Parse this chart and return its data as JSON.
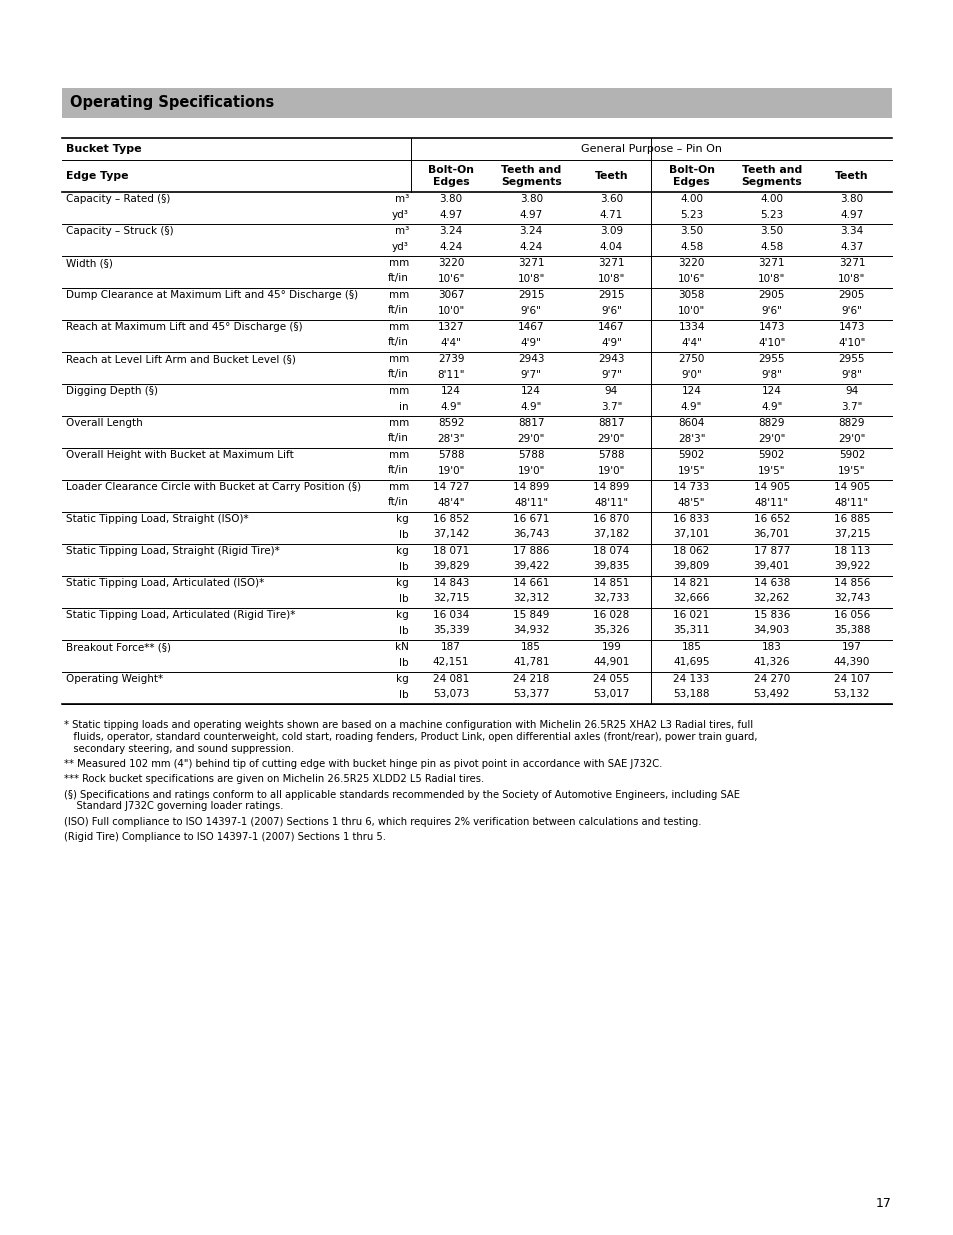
{
  "title": "Operating Specifications",
  "title_bg": "#b3b3b3",
  "page_bg": "#ffffff",
  "rows": [
    {
      "label": "Capacity – Rated (§)",
      "sub_rows": [
        {
          "unit": "m³",
          "vals": [
            "3.80",
            "3.80",
            "3.60",
            "4.00",
            "4.00",
            "3.80"
          ]
        },
        {
          "unit": "yd³",
          "vals": [
            "4.97",
            "4.97",
            "4.71",
            "5.23",
            "5.23",
            "4.97"
          ]
        }
      ]
    },
    {
      "label": "Capacity – Struck (§)",
      "sub_rows": [
        {
          "unit": "m³",
          "vals": [
            "3.24",
            "3.24",
            "3.09",
            "3.50",
            "3.50",
            "3.34"
          ]
        },
        {
          "unit": "yd³",
          "vals": [
            "4.24",
            "4.24",
            "4.04",
            "4.58",
            "4.58",
            "4.37"
          ]
        }
      ]
    },
    {
      "label": "Width (§)",
      "sub_rows": [
        {
          "unit": "mm",
          "vals": [
            "3220",
            "3271",
            "3271",
            "3220",
            "3271",
            "3271"
          ]
        },
        {
          "unit": "ft/in",
          "vals": [
            "10'6\"",
            "10'8\"",
            "10'8\"",
            "10'6\"",
            "10'8\"",
            "10'8\""
          ]
        }
      ]
    },
    {
      "label": "Dump Clearance at Maximum Lift and 45° Discharge (§)",
      "sub_rows": [
        {
          "unit": "mm",
          "vals": [
            "3067",
            "2915",
            "2915",
            "3058",
            "2905",
            "2905"
          ]
        },
        {
          "unit": "ft/in",
          "vals": [
            "10'0\"",
            "9'6\"",
            "9'6\"",
            "10'0\"",
            "9'6\"",
            "9'6\""
          ]
        }
      ]
    },
    {
      "label": "Reach at Maximum Lift and 45° Discharge (§)",
      "sub_rows": [
        {
          "unit": "mm",
          "vals": [
            "1327",
            "1467",
            "1467",
            "1334",
            "1473",
            "1473"
          ]
        },
        {
          "unit": "ft/in",
          "vals": [
            "4'4\"",
            "4'9\"",
            "4'9\"",
            "4'4\"",
            "4'10\"",
            "4'10\""
          ]
        }
      ]
    },
    {
      "label": "Reach at Level Lift Arm and Bucket Level (§)",
      "sub_rows": [
        {
          "unit": "mm",
          "vals": [
            "2739",
            "2943",
            "2943",
            "2750",
            "2955",
            "2955"
          ]
        },
        {
          "unit": "ft/in",
          "vals": [
            "8'11\"",
            "9'7\"",
            "9'7\"",
            "9'0\"",
            "9'8\"",
            "9'8\""
          ]
        }
      ]
    },
    {
      "label": "Digging Depth (§)",
      "sub_rows": [
        {
          "unit": "mm",
          "vals": [
            "124",
            "124",
            "94",
            "124",
            "124",
            "94"
          ]
        },
        {
          "unit": "in",
          "vals": [
            "4.9\"",
            "4.9\"",
            "3.7\"",
            "4.9\"",
            "4.9\"",
            "3.7\""
          ]
        }
      ]
    },
    {
      "label": "Overall Length",
      "sub_rows": [
        {
          "unit": "mm",
          "vals": [
            "8592",
            "8817",
            "8817",
            "8604",
            "8829",
            "8829"
          ]
        },
        {
          "unit": "ft/in",
          "vals": [
            "28'3\"",
            "29'0\"",
            "29'0\"",
            "28'3\"",
            "29'0\"",
            "29'0\""
          ]
        }
      ]
    },
    {
      "label": "Overall Height with Bucket at Maximum Lift",
      "sub_rows": [
        {
          "unit": "mm",
          "vals": [
            "5788",
            "5788",
            "5788",
            "5902",
            "5902",
            "5902"
          ]
        },
        {
          "unit": "ft/in",
          "vals": [
            "19'0\"",
            "19'0\"",
            "19'0\"",
            "19'5\"",
            "19'5\"",
            "19'5\""
          ]
        }
      ]
    },
    {
      "label": "Loader Clearance Circle with Bucket at Carry Position (§)",
      "sub_rows": [
        {
          "unit": "mm",
          "vals": [
            "14 727",
            "14 899",
            "14 899",
            "14 733",
            "14 905",
            "14 905"
          ]
        },
        {
          "unit": "ft/in",
          "vals": [
            "48'4\"",
            "48'11\"",
            "48'11\"",
            "48'5\"",
            "48'11\"",
            "48'11\""
          ]
        }
      ]
    },
    {
      "label": "Static Tipping Load, Straight (ISO)*",
      "sub_rows": [
        {
          "unit": "kg",
          "vals": [
            "16 852",
            "16 671",
            "16 870",
            "16 833",
            "16 652",
            "16 885"
          ]
        },
        {
          "unit": "lb",
          "vals": [
            "37,142",
            "36,743",
            "37,182",
            "37,101",
            "36,701",
            "37,215"
          ]
        }
      ]
    },
    {
      "label": "Static Tipping Load, Straight (Rigid Tire)*",
      "sub_rows": [
        {
          "unit": "kg",
          "vals": [
            "18 071",
            "17 886",
            "18 074",
            "18 062",
            "17 877",
            "18 113"
          ]
        },
        {
          "unit": "lb",
          "vals": [
            "39,829",
            "39,422",
            "39,835",
            "39,809",
            "39,401",
            "39,922"
          ]
        }
      ]
    },
    {
      "label": "Static Tipping Load, Articulated (ISO)*",
      "sub_rows": [
        {
          "unit": "kg",
          "vals": [
            "14 843",
            "14 661",
            "14 851",
            "14 821",
            "14 638",
            "14 856"
          ]
        },
        {
          "unit": "lb",
          "vals": [
            "32,715",
            "32,312",
            "32,733",
            "32,666",
            "32,262",
            "32,743"
          ]
        }
      ]
    },
    {
      "label": "Static Tipping Load, Articulated (Rigid Tire)*",
      "sub_rows": [
        {
          "unit": "kg",
          "vals": [
            "16 034",
            "15 849",
            "16 028",
            "16 021",
            "15 836",
            "16 056"
          ]
        },
        {
          "unit": "lb",
          "vals": [
            "35,339",
            "34,932",
            "35,326",
            "35,311",
            "34,903",
            "35,388"
          ]
        }
      ]
    },
    {
      "label": "Breakout Force** (§)",
      "sub_rows": [
        {
          "unit": "kN",
          "vals": [
            "187",
            "185",
            "199",
            "185",
            "183",
            "197"
          ]
        },
        {
          "unit": "lb",
          "vals": [
            "42,151",
            "41,781",
            "44,901",
            "41,695",
            "41,326",
            "44,390"
          ]
        }
      ]
    },
    {
      "label": "Operating Weight*",
      "sub_rows": [
        {
          "unit": "kg",
          "vals": [
            "24 081",
            "24 218",
            "24 055",
            "24 133",
            "24 270",
            "24 107"
          ]
        },
        {
          "unit": "lb",
          "vals": [
            "53,073",
            "53,377",
            "53,017",
            "53,188",
            "53,492",
            "53,132"
          ]
        }
      ]
    }
  ],
  "footnote1": "* Static tipping loads and operating weights shown are based on a machine configuration with Michelin 26.5R25 XHA2 L3 Radial tires, full",
  "footnote1b": "   fluids, operator, standard counterweight, cold start, roading fenders, Product Link, open differential axles (front/rear), power train guard,",
  "footnote1c": "   secondary steering, and sound suppression.",
  "footnote2": "** Measured 102 mm (4\") behind tip of cutting edge with bucket hinge pin as pivot point in accordance with SAE J732C.",
  "footnote3": "*** Rock bucket specifications are given on Michelin 26.5R25 XLDD2 L5 Radial tires.",
  "footnote4a": "(§) Specifications and ratings conform to all applicable standards recommended by the Society of Automotive Engineers, including SAE",
  "footnote4b": "    Standard J732C governing loader ratings.",
  "footnote5": "(ISO) Full compliance to ISO 14397-1 (2007) Sections 1 thru 6, which requires 2% verification between calculations and testing.",
  "footnote6": "(Rigid Tire) Compliance to ISO 14397-1 (2007) Sections 1 thru 5.",
  "page_number": "17"
}
